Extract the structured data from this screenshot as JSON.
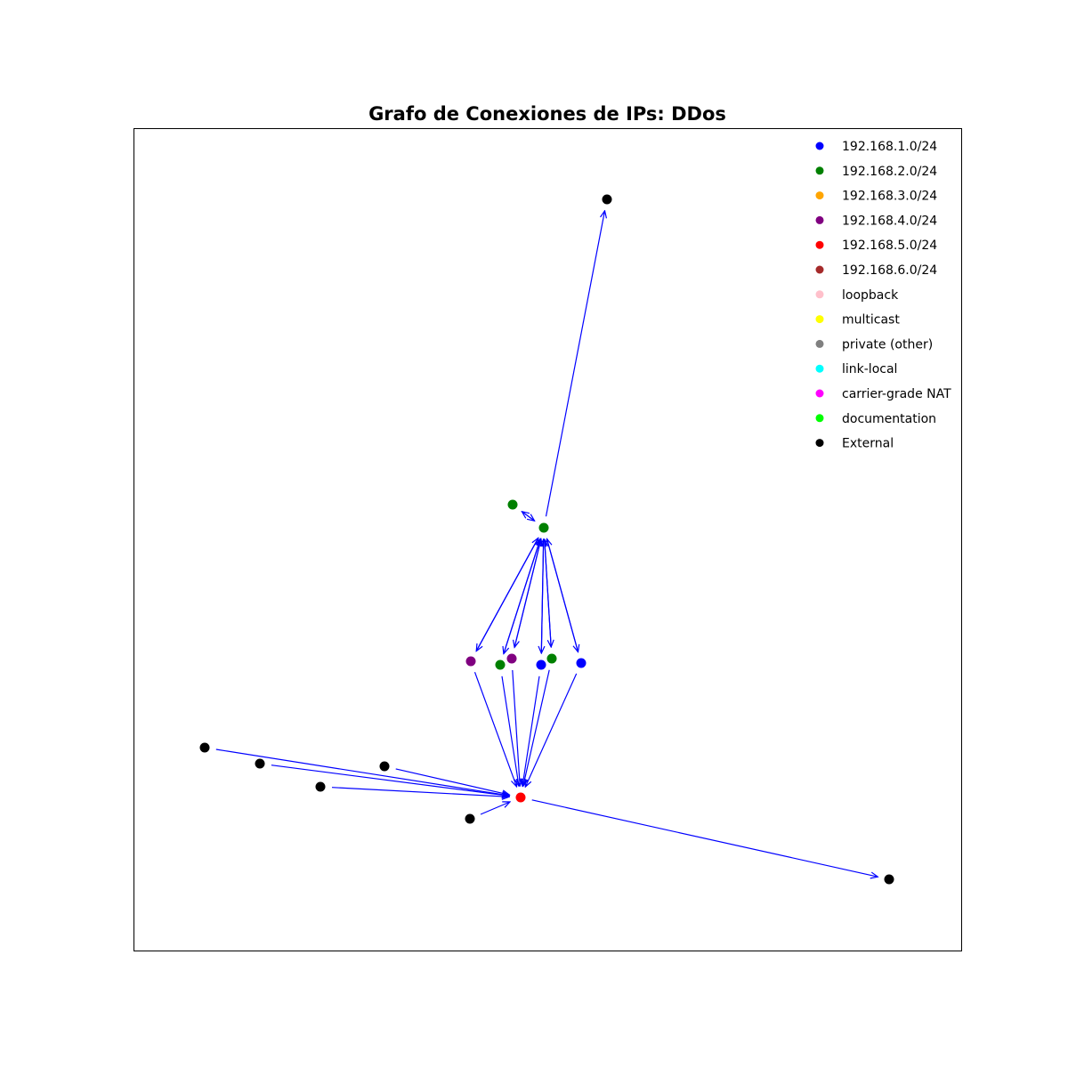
{
  "title": "Grafo de Conexiones de IPs: DDos",
  "edge_color": "#0000ff",
  "legend": [
    {
      "label": "192.168.1.0/24",
      "color": "#0000ff"
    },
    {
      "label": "192.168.2.0/24",
      "color": "#008000"
    },
    {
      "label": "192.168.3.0/24",
      "color": "#ffa500"
    },
    {
      "label": "192.168.4.0/24",
      "color": "#800080"
    },
    {
      "label": "192.168.5.0/24",
      "color": "#ff0000"
    },
    {
      "label": "192.168.6.0/24",
      "color": "#a52a2a"
    },
    {
      "label": "loopback",
      "color": "#ffc0cb"
    },
    {
      "label": "multicast",
      "color": "#ffff00"
    },
    {
      "label": "private (other)",
      "color": "#808080"
    },
    {
      "label": "link-local",
      "color": "#00ffff"
    },
    {
      "label": "carrier-grade NAT",
      "color": "#ff00ff"
    },
    {
      "label": "documentation",
      "color": "#00ff00"
    },
    {
      "label": "External",
      "color": "#000000"
    }
  ],
  "nodes": [
    {
      "id": "n1",
      "category": "192.168.2.0/24"
    },
    {
      "id": "n2",
      "category": "192.168.2.0/24"
    },
    {
      "id": "n3",
      "category": "External"
    },
    {
      "id": "n4",
      "category": "192.168.4.0/24"
    },
    {
      "id": "n5",
      "category": "192.168.2.0/24"
    },
    {
      "id": "n6",
      "category": "192.168.4.0/24"
    },
    {
      "id": "n7",
      "category": "192.168.1.0/24"
    },
    {
      "id": "n8",
      "category": "192.168.2.0/24"
    },
    {
      "id": "n9",
      "category": "192.168.1.0/24"
    },
    {
      "id": "n10",
      "category": "192.168.5.0/24"
    },
    {
      "id": "n11",
      "category": "External"
    },
    {
      "id": "n12",
      "category": "External"
    },
    {
      "id": "n13",
      "category": "External"
    },
    {
      "id": "n14",
      "category": "External"
    },
    {
      "id": "n15",
      "category": "External"
    },
    {
      "id": "n16",
      "category": "External"
    }
  ],
  "edges": [
    {
      "source": "n1",
      "target": "n3"
    },
    {
      "source": "n1",
      "target": "n2"
    },
    {
      "source": "n2",
      "target": "n1"
    },
    {
      "source": "n1",
      "target": "n4"
    },
    {
      "source": "n1",
      "target": "n5"
    },
    {
      "source": "n1",
      "target": "n6"
    },
    {
      "source": "n1",
      "target": "n7"
    },
    {
      "source": "n1",
      "target": "n8"
    },
    {
      "source": "n1",
      "target": "n9"
    },
    {
      "source": "n4",
      "target": "n1"
    },
    {
      "source": "n5",
      "target": "n1"
    },
    {
      "source": "n6",
      "target": "n1"
    },
    {
      "source": "n7",
      "target": "n1"
    },
    {
      "source": "n8",
      "target": "n1"
    },
    {
      "source": "n9",
      "target": "n1"
    },
    {
      "source": "n4",
      "target": "n10"
    },
    {
      "source": "n5",
      "target": "n10"
    },
    {
      "source": "n6",
      "target": "n10"
    },
    {
      "source": "n7",
      "target": "n10"
    },
    {
      "source": "n8",
      "target": "n10"
    },
    {
      "source": "n9",
      "target": "n10"
    },
    {
      "source": "n11",
      "target": "n10"
    },
    {
      "source": "n12",
      "target": "n10"
    },
    {
      "source": "n13",
      "target": "n10"
    },
    {
      "source": "n14",
      "target": "n10"
    },
    {
      "source": "n15",
      "target": "n10"
    },
    {
      "source": "n10",
      "target": "n16"
    }
  ]
}
